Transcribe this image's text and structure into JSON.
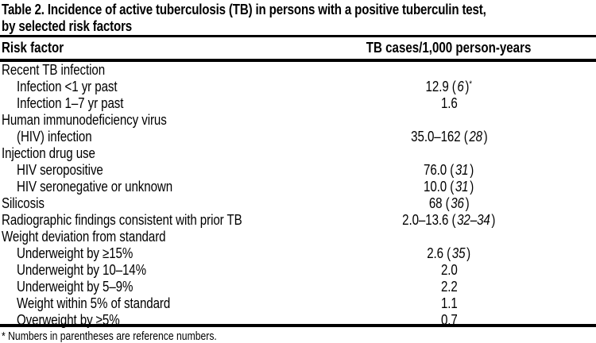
{
  "page": {
    "background_color": "#ffffff",
    "text_color": "#000000"
  },
  "table": {
    "title_lines": [
      "Table 2. Incidence of active tuberculosis (TB) in persons with a positive tuberculin test,",
      "by selected risk factors"
    ],
    "columns": [
      "Risk factor",
      "TB cases/1,000 person-years"
    ],
    "rows": [
      {
        "label": "Recent TB infection",
        "indent": 0,
        "value": "",
        "ref": "",
        "marker": ""
      },
      {
        "label": "Infection <1 yr past",
        "indent": 1,
        "value": "12.9",
        "ref": "6",
        "marker": "*"
      },
      {
        "label": "Infection 1–7 yr past",
        "indent": 1,
        "value": "1.6",
        "ref": "",
        "marker": ""
      },
      {
        "label": "Human immunodeficiency virus",
        "indent": 0,
        "value": "",
        "ref": "",
        "marker": ""
      },
      {
        "label": "(HIV) infection",
        "indent": 1,
        "value": "35.0–162",
        "ref": "28",
        "marker": ""
      },
      {
        "label": "Injection drug use",
        "indent": 0,
        "value": "",
        "ref": "",
        "marker": ""
      },
      {
        "label": "HIV seropositive",
        "indent": 1,
        "value": "76.0",
        "ref": "31",
        "marker": ""
      },
      {
        "label": "HIV seronegative or unknown",
        "indent": 1,
        "value": "10.0",
        "ref": "31",
        "marker": ""
      },
      {
        "label": "Silicosis",
        "indent": 0,
        "value": "68",
        "ref": "36",
        "marker": ""
      },
      {
        "label": "Radiographic findings consistent with prior TB",
        "indent": 0,
        "value": "2.0–13.6",
        "ref": "32–34",
        "marker": ""
      },
      {
        "label": "Weight deviation from standard",
        "indent": 0,
        "value": "",
        "ref": "",
        "marker": ""
      },
      {
        "label": "Underweight by ≥15%",
        "indent": 1,
        "value": "2.6",
        "ref": "35",
        "marker": ""
      },
      {
        "label": "Underweight by 10–14%",
        "indent": 1,
        "value": "2.0",
        "ref": "",
        "marker": ""
      },
      {
        "label": "Underweight by 5–9%",
        "indent": 1,
        "value": "2.2",
        "ref": "",
        "marker": ""
      },
      {
        "label": "Weight within 5% of standard",
        "indent": 1,
        "value": "1.1",
        "ref": "",
        "marker": ""
      },
      {
        "label": "Overweight by ≥5%",
        "indent": 1,
        "value": "0.7",
        "ref": "",
        "marker": ""
      }
    ],
    "footnote": "* Numbers in parentheses are reference numbers."
  }
}
